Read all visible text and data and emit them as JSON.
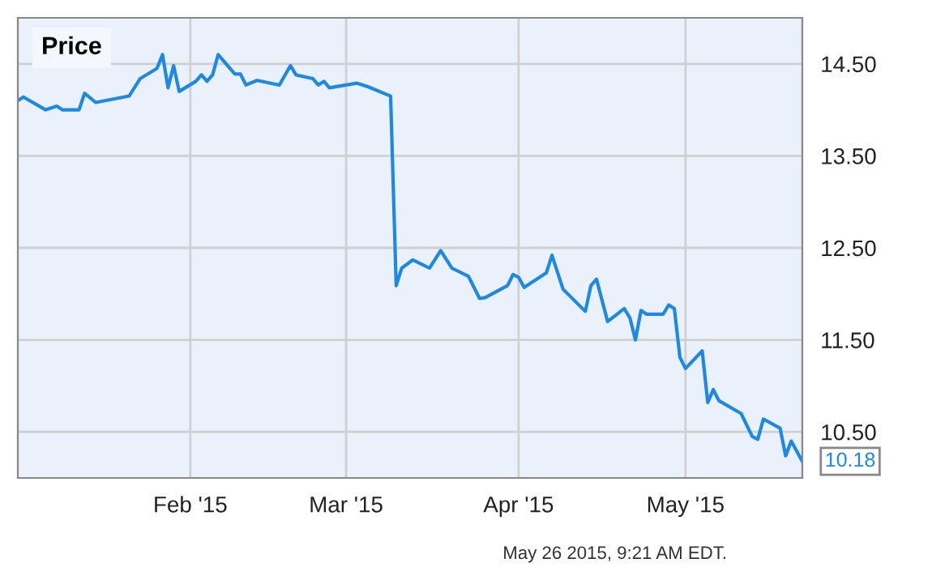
{
  "chart_data": {
    "type": "line",
    "title": "Price",
    "x": [
      "2015-01-01",
      "2015-01-02",
      "2015-01-06",
      "2015-01-08",
      "2015-01-09",
      "2015-01-12",
      "2015-01-13",
      "2015-01-15",
      "2015-01-21",
      "2015-01-23",
      "2015-01-26",
      "2015-01-27",
      "2015-01-28",
      "2015-01-29",
      "2015-01-30",
      "2015-02-02",
      "2015-02-03",
      "2015-02-04",
      "2015-02-05",
      "2015-02-06",
      "2015-02-09",
      "2015-02-10",
      "2015-02-11",
      "2015-02-13",
      "2015-02-17",
      "2015-02-19",
      "2015-02-20",
      "2015-02-23",
      "2015-02-24",
      "2015-02-25",
      "2015-02-26",
      "2015-03-03",
      "2015-03-05",
      "2015-03-09",
      "2015-03-10",
      "2015-03-11",
      "2015-03-13",
      "2015-03-16",
      "2015-03-18",
      "2015-03-20",
      "2015-03-23",
      "2015-03-25",
      "2015-03-26",
      "2015-03-30",
      "2015-03-31",
      "2015-04-01",
      "2015-04-02",
      "2015-04-06",
      "2015-04-07",
      "2015-04-09",
      "2015-04-13",
      "2015-04-14",
      "2015-04-15",
      "2015-04-17",
      "2015-04-20",
      "2015-04-21",
      "2015-04-22",
      "2015-04-23",
      "2015-04-24",
      "2015-04-27",
      "2015-04-28",
      "2015-04-29",
      "2015-04-30",
      "2015-05-01",
      "2015-05-04",
      "2015-05-05",
      "2015-05-06",
      "2015-05-07",
      "2015-05-11",
      "2015-05-13",
      "2015-05-14",
      "2015-05-15",
      "2015-05-18",
      "2015-05-19",
      "2015-05-20",
      "2015-05-22"
    ],
    "series": [
      {
        "color": "#1e88e5",
        "values": [
          14.1,
          14.14,
          14.0,
          14.04,
          14.0,
          14.0,
          14.18,
          14.08,
          14.15,
          14.34,
          14.45,
          14.6,
          14.24,
          14.48,
          14.2,
          14.31,
          14.38,
          14.31,
          14.38,
          14.6,
          14.39,
          14.39,
          14.27,
          14.32,
          14.27,
          14.48,
          14.38,
          14.34,
          14.27,
          14.31,
          14.24,
          14.29,
          14.25,
          14.15,
          12.09,
          12.28,
          12.37,
          12.28,
          12.47,
          12.28,
          12.19,
          11.95,
          11.96,
          12.09,
          12.21,
          12.18,
          12.07,
          12.23,
          12.42,
          12.05,
          11.81,
          12.09,
          12.16,
          11.7,
          11.84,
          11.74,
          11.5,
          11.82,
          11.78,
          11.78,
          11.88,
          11.84,
          11.31,
          11.19,
          11.38,
          10.82,
          10.96,
          10.84,
          10.7,
          10.45,
          10.42,
          10.64,
          10.54,
          10.24,
          10.4,
          10.18
        ],
        "value_labels": [
          null,
          null,
          null,
          null,
          null,
          null,
          null,
          null,
          null,
          null,
          null,
          null,
          null,
          null,
          null,
          null,
          null,
          null,
          null,
          null,
          null,
          null,
          null,
          null,
          null,
          null,
          null,
          null,
          null,
          null,
          null,
          null,
          null,
          null,
          null,
          null,
          null,
          null,
          null,
          null,
          null,
          null,
          null,
          null,
          null,
          null,
          null,
          null,
          null,
          null,
          null,
          null,
          null,
          null,
          null,
          null,
          null,
          null,
          null,
          null,
          null,
          null,
          null,
          null,
          null,
          null,
          null,
          null,
          null,
          null,
          null,
          null,
          null,
          null,
          null,
          "10.18"
        ]
      }
    ],
    "xlim": [
      "2015-01-01",
      "2015-05-22"
    ],
    "xticks": [
      {
        "value": "2015-02-01",
        "label": "Feb '15"
      },
      {
        "value": "2015-03-01",
        "label": "Mar '15"
      },
      {
        "value": "2015-04-01",
        "label": "Apr '15"
      },
      {
        "value": "2015-05-01",
        "label": "May '15"
      }
    ],
    "ylim": [
      10,
      15
    ],
    "yticks": [
      {
        "value": 10.5,
        "label": "10.50"
      },
      {
        "value": 11.5,
        "label": "11.50"
      },
      {
        "value": 12.5,
        "label": "12.50"
      },
      {
        "value": 13.5,
        "label": "13.50"
      },
      {
        "value": 14.5,
        "label": "14.50"
      }
    ],
    "grid": true,
    "annotations": [
      "May 26 2015, 9:21 AM EDT."
    ]
  }
}
